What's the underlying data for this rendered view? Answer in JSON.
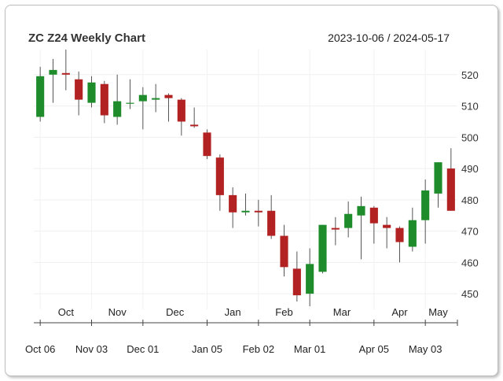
{
  "chart_data": {
    "type": "candlestick",
    "title": "ZC Z24 Weekly Chart",
    "date_range": "2023-10-06 / 2024-05-17",
    "ylim": [
      445,
      528
    ],
    "y_ticks": [
      450,
      460,
      470,
      480,
      490,
      500,
      510,
      520
    ],
    "month_labels": [
      {
        "label": "Oct",
        "at": 2
      },
      {
        "label": "Nov",
        "at": 6
      },
      {
        "label": "Dec",
        "at": 10.5
      },
      {
        "label": "Jan",
        "at": 15
      },
      {
        "label": "Feb",
        "at": 19
      },
      {
        "label": "Mar",
        "at": 23.5
      },
      {
        "label": "Apr",
        "at": 28
      },
      {
        "label": "May",
        "at": 31
      }
    ],
    "date_labels": [
      {
        "label": "Oct 06",
        "at": 0
      },
      {
        "label": "Nov 03",
        "at": 4
      },
      {
        "label": "Dec 01",
        "at": 8
      },
      {
        "label": "Jan 05",
        "at": 13
      },
      {
        "label": "Feb 02",
        "at": 17
      },
      {
        "label": "Mar 01",
        "at": 21
      },
      {
        "label": "Apr 05",
        "at": 26
      },
      {
        "label": "May 03",
        "at": 30
      }
    ],
    "colors": {
      "up": "#1e8c2a",
      "down": "#b22222",
      "wick": "#555555"
    },
    "candles": [
      {
        "date": "2023-10-06",
        "open": 506.5,
        "high": 522.5,
        "low": 505.0,
        "close": 519.5
      },
      {
        "date": "2023-10-13",
        "open": 520.0,
        "high": 525.0,
        "low": 511.0,
        "close": 521.5
      },
      {
        "date": "2023-10-20",
        "open": 520.5,
        "high": 528.0,
        "low": 515.0,
        "close": 520.0
      },
      {
        "date": "2023-10-27",
        "open": 518.5,
        "high": 521.0,
        "low": 507.0,
        "close": 512.0
      },
      {
        "date": "2023-11-03",
        "open": 511.0,
        "high": 519.5,
        "low": 509.5,
        "close": 517.5
      },
      {
        "date": "2023-11-10",
        "open": 517.0,
        "high": 518.0,
        "low": 504.5,
        "close": 507.0
      },
      {
        "date": "2023-11-17",
        "open": 506.5,
        "high": 520.0,
        "low": 504.0,
        "close": 511.5
      },
      {
        "date": "2023-11-24",
        "open": 511.0,
        "high": 518.5,
        "low": 509.0,
        "close": 511.0
      },
      {
        "date": "2023-12-01",
        "open": 511.5,
        "high": 516.0,
        "low": 502.5,
        "close": 513.5
      },
      {
        "date": "2023-12-08",
        "open": 512.0,
        "high": 517.0,
        "low": 508.0,
        "close": 512.5
      },
      {
        "date": "2023-12-15",
        "open": 513.5,
        "high": 514.0,
        "low": 505.0,
        "close": 512.5
      },
      {
        "date": "2023-12-22",
        "open": 512.0,
        "high": 512.5,
        "low": 500.5,
        "close": 505.0
      },
      {
        "date": "2023-12-29",
        "open": 504.0,
        "high": 509.5,
        "low": 503.0,
        "close": 503.5
      },
      {
        "date": "2024-01-05",
        "open": 501.5,
        "high": 502.5,
        "low": 493.0,
        "close": 494.0
      },
      {
        "date": "2024-01-12",
        "open": 493.5,
        "high": 494.5,
        "low": 476.5,
        "close": 481.5
      },
      {
        "date": "2024-01-19",
        "open": 481.5,
        "high": 484.0,
        "low": 471.0,
        "close": 476.0
      },
      {
        "date": "2024-01-26",
        "open": 476.0,
        "high": 482.0,
        "low": 475.0,
        "close": 476.5
      },
      {
        "date": "2024-02-02",
        "open": 476.5,
        "high": 480.0,
        "low": 471.5,
        "close": 476.0
      },
      {
        "date": "2024-02-09",
        "open": 476.5,
        "high": 481.5,
        "low": 467.5,
        "close": 468.5
      },
      {
        "date": "2024-02-16",
        "open": 468.5,
        "high": 472.0,
        "low": 455.5,
        "close": 458.5
      },
      {
        "date": "2024-02-23",
        "open": 458.0,
        "high": 463.5,
        "low": 447.5,
        "close": 449.5
      },
      {
        "date": "2024-03-01",
        "open": 450.0,
        "high": 464.5,
        "low": 446.0,
        "close": 459.5
      },
      {
        "date": "2024-03-08",
        "open": 457.0,
        "high": 472.0,
        "low": 456.5,
        "close": 472.0
      },
      {
        "date": "2024-03-15",
        "open": 471.0,
        "high": 474.5,
        "low": 465.5,
        "close": 470.5
      },
      {
        "date": "2024-03-22",
        "open": 471.0,
        "high": 479.5,
        "low": 468.0,
        "close": 475.5
      },
      {
        "date": "2024-03-29",
        "open": 475.0,
        "high": 481.0,
        "low": 461.0,
        "close": 478.0
      },
      {
        "date": "2024-04-05",
        "open": 477.5,
        "high": 478.0,
        "low": 466.0,
        "close": 472.5
      },
      {
        "date": "2024-04-12",
        "open": 472.0,
        "high": 474.5,
        "low": 464.5,
        "close": 471.0
      },
      {
        "date": "2024-04-19",
        "open": 471.0,
        "high": 471.5,
        "low": 460.0,
        "close": 466.5
      },
      {
        "date": "2024-04-26",
        "open": 465.0,
        "high": 477.5,
        "low": 463.5,
        "close": 473.5
      },
      {
        "date": "2024-05-03",
        "open": 473.5,
        "high": 486.5,
        "low": 466.0,
        "close": 483.0
      },
      {
        "date": "2024-05-10",
        "open": 482.0,
        "high": 492.0,
        "low": 477.5,
        "close": 492.0
      },
      {
        "date": "2024-05-17",
        "open": 490.0,
        "high": 496.5,
        "low": 476.5,
        "close": 476.5
      }
    ]
  }
}
